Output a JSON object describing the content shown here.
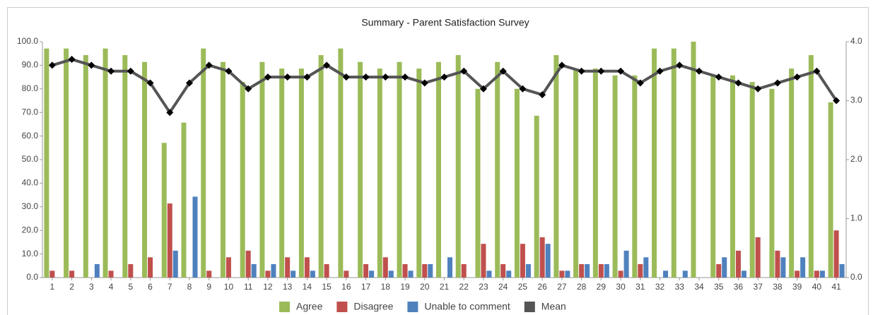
{
  "chart_data": {
    "type": "bar",
    "title": "Summary - Parent Satisfaction Survey",
    "categories": [
      "1",
      "2",
      "3",
      "4",
      "5",
      "6",
      "7",
      "8",
      "9",
      "10",
      "11",
      "12",
      "13",
      "14",
      "15",
      "16",
      "17",
      "18",
      "19",
      "20",
      "21",
      "22",
      "23",
      "24",
      "25",
      "26",
      "27",
      "28",
      "29",
      "30",
      "31",
      "32",
      "33",
      "34",
      "35",
      "36",
      "37",
      "38",
      "39",
      "40",
      "41"
    ],
    "series": [
      {
        "name": "Agree",
        "color": "#9bbb59",
        "values": [
          97.1,
          97.1,
          94.3,
          97.1,
          94.3,
          91.4,
          57.1,
          65.7,
          97.1,
          91.4,
          82.9,
          91.4,
          88.6,
          88.6,
          94.3,
          97.1,
          91.4,
          88.6,
          91.4,
          88.6,
          91.4,
          94.3,
          80,
          91.4,
          80,
          68.6,
          94.3,
          88.6,
          88.6,
          85.7,
          85.7,
          97.1,
          97.1,
          100,
          85.7,
          85.7,
          82.9,
          80,
          88.6,
          94.3,
          74.3
        ]
      },
      {
        "name": "Disagree",
        "color": "#c0504d",
        "values": [
          2.9,
          2.9,
          0,
          2.9,
          5.7,
          8.6,
          31.4,
          0,
          2.9,
          8.6,
          11.4,
          2.9,
          8.6,
          8.6,
          5.7,
          2.9,
          5.7,
          8.6,
          5.7,
          5.7,
          0,
          5.7,
          14.3,
          5.7,
          14.3,
          17.1,
          2.9,
          5.7,
          5.7,
          2.9,
          5.7,
          0,
          0,
          0,
          5.7,
          11.4,
          17.1,
          11.4,
          2.9,
          2.9,
          20
        ]
      },
      {
        "name": "Unable to comment",
        "color": "#4f81bd",
        "values": [
          0,
          0,
          5.7,
          0,
          0,
          0,
          11.4,
          34.3,
          0,
          0,
          5.7,
          5.7,
          2.9,
          2.9,
          0,
          0,
          2.9,
          2.9,
          2.9,
          5.7,
          8.6,
          0,
          2.9,
          2.9,
          5.7,
          14.3,
          2.9,
          5.7,
          5.7,
          11.4,
          8.6,
          2.9,
          2.9,
          0,
          8.6,
          2.9,
          0,
          8.6,
          8.6,
          2.9,
          5.7
        ]
      },
      {
        "name": "Mean",
        "color": "#555555",
        "type": "line",
        "axis": "y2",
        "values": [
          3.6,
          3.7,
          3.6,
          3.5,
          3.5,
          3.3,
          2.8,
          3.3,
          3.6,
          3.5,
          3.2,
          3.4,
          3.4,
          3.4,
          3.6,
          3.4,
          3.4,
          3.4,
          3.4,
          3.3,
          3.4,
          3.5,
          3.2,
          3.5,
          3.2,
          3.1,
          3.6,
          3.5,
          3.5,
          3.5,
          3.3,
          3.5,
          3.6,
          3.5,
          3.4,
          3.3,
          3.2,
          3.3,
          3.4,
          3.5,
          3.0
        ]
      }
    ],
    "ylim": [
      0,
      100
    ],
    "yticks": [
      {
        "value": 0,
        "label": "0.0"
      },
      {
        "value": 10,
        "label": "10.0"
      },
      {
        "value": 20,
        "label": "20.0"
      },
      {
        "value": 30,
        "label": "30.0"
      },
      {
        "value": 40,
        "label": "40.0"
      },
      {
        "value": 50,
        "label": "50.0"
      },
      {
        "value": 60,
        "label": "60.0"
      },
      {
        "value": 70,
        "label": "70.0"
      },
      {
        "value": 80,
        "label": "80.0"
      },
      {
        "value": 90,
        "label": "90.0"
      },
      {
        "value": 100,
        "label": "100.0"
      }
    ],
    "y2lim": [
      0,
      4
    ],
    "y2ticks": [
      {
        "value": 0,
        "label": "0.0"
      },
      {
        "value": 1,
        "label": "1.0"
      },
      {
        "value": 2,
        "label": "2.0"
      },
      {
        "value": 3,
        "label": "3.0"
      },
      {
        "value": 4,
        "label": "4.0"
      }
    ],
    "grid": false,
    "legend": "bottom"
  }
}
